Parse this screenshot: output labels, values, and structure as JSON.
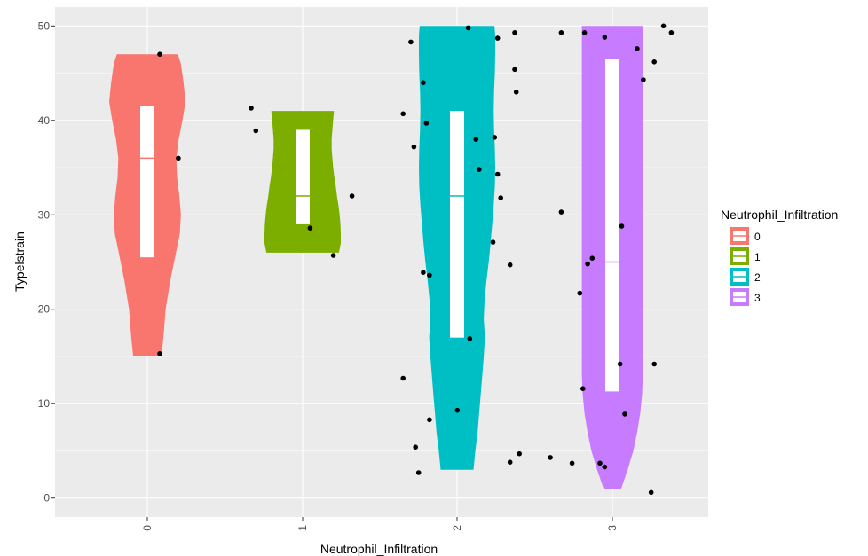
{
  "chart_data": {
    "type": "violin",
    "xlabel": "Neutrophil_Infiltration",
    "ylabel": "Typelstrain",
    "ylim": [
      -2,
      52
    ],
    "yticks": [
      0,
      10,
      20,
      30,
      40,
      50
    ],
    "categories": [
      "0",
      "1",
      "2",
      "3"
    ],
    "grid": true,
    "legend": {
      "title": "Neutrophil_Infiltration",
      "placement": "right",
      "entries": [
        "0",
        "1",
        "2",
        "3"
      ]
    },
    "colors": {
      "0": "#F8766D",
      "1": "#7CAE00",
      "2": "#00BFC4",
      "3": "#C77CFF",
      "panel": "#EBEBEB",
      "grid": "#FFFFFF",
      "box": "#FFFFFF",
      "points": "#000000"
    },
    "groups": [
      {
        "name": "0",
        "density": [
          [
            15,
            0.37
          ],
          [
            17,
            0.42
          ],
          [
            20,
            0.48
          ],
          [
            23,
            0.6
          ],
          [
            26,
            0.75
          ],
          [
            28,
            0.85
          ],
          [
            30,
            0.88
          ],
          [
            32,
            0.84
          ],
          [
            34,
            0.78
          ],
          [
            36,
            0.76
          ],
          [
            38,
            0.82
          ],
          [
            40,
            0.92
          ],
          [
            42,
            1.0
          ],
          [
            44,
            0.95
          ],
          [
            46,
            0.88
          ],
          [
            47,
            0.8
          ]
        ],
        "box": {
          "q1": 25.5,
          "median": 36,
          "q3": 41.5
        },
        "points": [
          [
            0.08,
            47
          ],
          [
            0.2,
            36
          ],
          [
            0.08,
            15.3
          ]
        ]
      },
      {
        "name": "1",
        "density": [
          [
            26,
            0.95
          ],
          [
            27,
            1.0
          ],
          [
            28,
            1.0
          ],
          [
            29,
            0.99
          ],
          [
            30,
            0.97
          ],
          [
            31,
            0.94
          ],
          [
            32,
            0.9
          ],
          [
            33,
            0.87
          ],
          [
            34,
            0.83
          ],
          [
            35,
            0.8
          ],
          [
            36,
            0.78
          ],
          [
            37,
            0.76
          ],
          [
            38,
            0.76
          ],
          [
            39,
            0.78
          ],
          [
            40,
            0.8
          ],
          [
            41,
            0.82
          ]
        ],
        "box": {
          "q1": 29,
          "median": 32,
          "q3": 39
        },
        "points": [
          [
            0.67,
            41.3
          ],
          [
            0.7,
            38.9
          ],
          [
            1.05,
            28.6
          ],
          [
            1.2,
            25.7
          ],
          [
            1.32,
            32
          ]
        ]
      },
      {
        "name": "2",
        "density": [
          [
            3,
            0.43
          ],
          [
            5,
            0.48
          ],
          [
            7,
            0.54
          ],
          [
            9,
            0.58
          ],
          [
            11,
            0.62
          ],
          [
            13,
            0.66
          ],
          [
            15,
            0.7
          ],
          [
            17,
            0.73
          ],
          [
            19,
            0.7
          ],
          [
            21,
            0.72
          ],
          [
            23,
            0.77
          ],
          [
            25,
            0.83
          ],
          [
            27,
            0.88
          ],
          [
            29,
            0.92
          ],
          [
            31,
            0.96
          ],
          [
            33,
            0.99
          ],
          [
            35,
            1.0
          ],
          [
            37,
            0.99
          ],
          [
            39,
            0.97
          ],
          [
            41,
            0.96
          ],
          [
            43,
            0.97
          ],
          [
            45,
            0.99
          ],
          [
            47,
            1.0
          ],
          [
            49,
            1.0
          ],
          [
            50,
            0.98
          ]
        ],
        "box": {
          "q1": 17,
          "median": 32,
          "q3": 41
        },
        "points": [
          [
            1.7,
            48.3
          ],
          [
            1.78,
            44
          ],
          [
            1.65,
            40.7
          ],
          [
            1.8,
            39.7
          ],
          [
            1.72,
            37.2
          ],
          [
            1.78,
            23.9
          ],
          [
            1.82,
            23.6
          ],
          [
            1.65,
            12.7
          ],
          [
            1.82,
            8.3
          ],
          [
            1.73,
            5.4
          ],
          [
            1.75,
            2.7
          ],
          [
            2.07,
            49.8
          ],
          [
            2.26,
            48.7
          ],
          [
            2.37,
            49.3
          ],
          [
            2.37,
            45.4
          ],
          [
            2.38,
            43
          ],
          [
            2.12,
            38
          ],
          [
            2.24,
            38.2
          ],
          [
            2.14,
            34.8
          ],
          [
            2.26,
            34.3
          ],
          [
            2.28,
            31.8
          ],
          [
            2.23,
            27.1
          ],
          [
            2.34,
            24.7
          ],
          [
            2.08,
            16.9
          ],
          [
            2.0,
            9.3
          ],
          [
            2.4,
            4.7
          ],
          [
            2.34,
            3.8
          ]
        ]
      },
      {
        "name": "3",
        "density": [
          [
            1,
            0.23
          ],
          [
            3,
            0.4
          ],
          [
            5,
            0.55
          ],
          [
            7,
            0.65
          ],
          [
            9,
            0.73
          ],
          [
            11,
            0.78
          ],
          [
            13,
            0.8
          ],
          [
            15,
            0.8
          ],
          [
            17,
            0.8
          ],
          [
            19,
            0.8
          ],
          [
            21,
            0.8
          ],
          [
            23,
            0.8
          ],
          [
            25,
            0.8
          ],
          [
            27,
            0.8
          ],
          [
            29,
            0.8
          ],
          [
            31,
            0.8
          ],
          [
            33,
            0.8
          ],
          [
            35,
            0.8
          ],
          [
            37,
            0.8
          ],
          [
            39,
            0.8
          ],
          [
            41,
            0.8
          ],
          [
            43,
            0.8
          ],
          [
            45,
            0.8
          ],
          [
            47,
            0.8
          ],
          [
            49,
            0.8
          ],
          [
            50,
            0.8
          ]
        ],
        "box": {
          "q1": 11.3,
          "median": 25,
          "q3": 46.5
        },
        "points": [
          [
            2.67,
            49.3
          ],
          [
            2.82,
            49.3
          ],
          [
            2.95,
            48.8
          ],
          [
            3.33,
            50
          ],
          [
            3.38,
            49.3
          ],
          [
            3.16,
            47.6
          ],
          [
            3.27,
            46.2
          ],
          [
            3.2,
            44.3
          ],
          [
            2.67,
            30.3
          ],
          [
            3.06,
            28.8
          ],
          [
            2.87,
            25.4
          ],
          [
            2.84,
            24.8
          ],
          [
            2.79,
            21.7
          ],
          [
            2.81,
            11.6
          ],
          [
            3.05,
            14.2
          ],
          [
            3.27,
            14.2
          ],
          [
            3.08,
            8.9
          ],
          [
            2.6,
            4.3
          ],
          [
            2.74,
            3.7
          ],
          [
            2.92,
            3.7
          ],
          [
            2.95,
            3.3
          ],
          [
            3.25,
            0.6
          ]
        ]
      }
    ]
  }
}
